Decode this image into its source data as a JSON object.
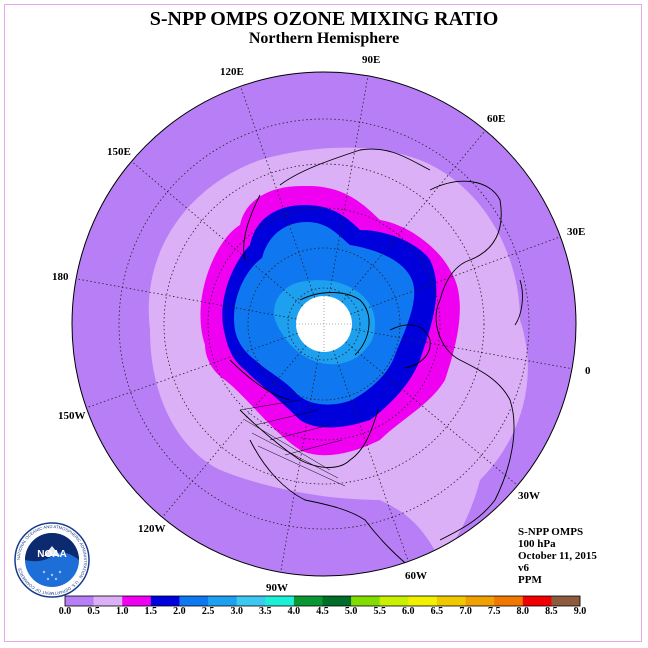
{
  "title": "S-NPP OMPS OZONE MIXING RATIO",
  "subtitle": "Northern Hemisphere",
  "longitude_labels": [
    {
      "text": "90E",
      "lon": 90
    },
    {
      "text": "60E",
      "lon": 60
    },
    {
      "text": "30E",
      "lon": 30
    },
    {
      "text": "0",
      "lon": 0
    },
    {
      "text": "30W",
      "lon": -30
    },
    {
      "text": "60W",
      "lon": -60
    },
    {
      "text": "90W",
      "lon": -90
    },
    {
      "text": "120W",
      "lon": -120
    },
    {
      "text": "150W",
      "lon": -150
    },
    {
      "text": "180",
      "lon": 180
    },
    {
      "text": "150E",
      "lon": 150
    },
    {
      "text": "120E",
      "lon": 120
    }
  ],
  "info": {
    "instrument": "S-NPP OMPS",
    "level": "100 hPa",
    "date": "October 11, 2015",
    "version": "v6",
    "units": "PPM"
  },
  "logo_text": "NOAA",
  "logo_ring_text": "NATIONAL OCEANIC AND ATMOSPHERIC ADMINISTRATION · U.S. DEPARTMENT OF COMMERCE",
  "colorbar": {
    "ticks": [
      "0.0",
      "0.5",
      "1.0",
      "1.5",
      "2.0",
      "2.5",
      "3.0",
      "3.5",
      "4.0",
      "4.5",
      "5.0",
      "5.5",
      "6.0",
      "6.5",
      "7.0",
      "7.5",
      "8.0",
      "8.5",
      "9.0"
    ],
    "colors": [
      "#b77ef5",
      "#dcb0f7",
      "#f000f0",
      "#0000dc",
      "#0f78f0",
      "#1ea0f0",
      "#3cc8f0",
      "#1ef0d8",
      "#0a9632",
      "#006e28",
      "#82dc00",
      "#c8f000",
      "#f0f000",
      "#f0c800",
      "#f0a000",
      "#f07800",
      "#f00000",
      "#8c5a3c"
    ]
  },
  "colors": {
    "background": "#b77ef5",
    "band_light": "#dcb0f7",
    "band_magenta": "#f000f0",
    "band_blue": "#0000dc",
    "band_mid": "#0f78f0",
    "band_light_blue": "#1ea0f0",
    "pole_fill": "#ffffff"
  }
}
